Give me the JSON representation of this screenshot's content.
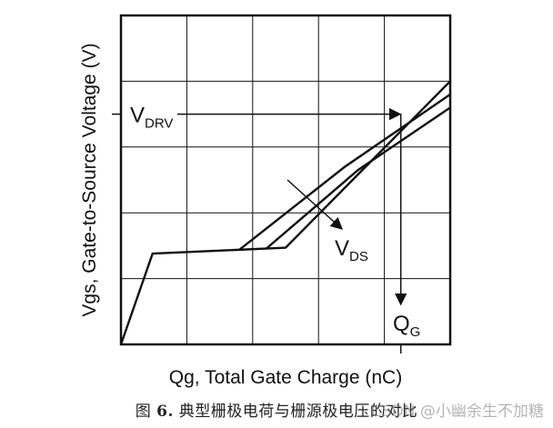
{
  "chart_data": {
    "type": "line",
    "title": "",
    "xlabel": "Qg, Total Gate Charge (nC)",
    "ylabel": "Vgs, Gate-to-Source Voltage (V)",
    "grid": true,
    "x_gridlines": 5,
    "y_gridlines": 5,
    "xlim": [
      0,
      5
    ],
    "ylim": [
      0,
      5
    ],
    "series": [
      {
        "name": "",
        "points": [
          [
            0,
            0
          ],
          [
            0.48,
            1.38
          ],
          [
            2.5,
            1.47
          ],
          [
            5,
            4.0
          ]
        ]
      },
      {
        "name": "",
        "points": [
          [
            1.8,
            1.44
          ],
          [
            3.4,
            2.7
          ],
          [
            5,
            3.8
          ]
        ]
      },
      {
        "name": "",
        "points": [
          [
            2.2,
            1.45
          ],
          [
            3.6,
            2.65
          ],
          [
            5,
            3.6
          ]
        ]
      }
    ],
    "annotations": {
      "vdrv": {
        "label": "V",
        "sub": "DRV",
        "y": 3.5
      },
      "vds": {
        "label": "V",
        "sub": "DS"
      },
      "qg": {
        "label": "Q",
        "sub": "G",
        "x": 4.25
      }
    }
  },
  "caption": {
    "prefix": "图",
    "number": "6.",
    "text": "典型栅极电荷与栅源极电压的对比"
  },
  "watermark": "CSDN @小幽余生不加糖"
}
